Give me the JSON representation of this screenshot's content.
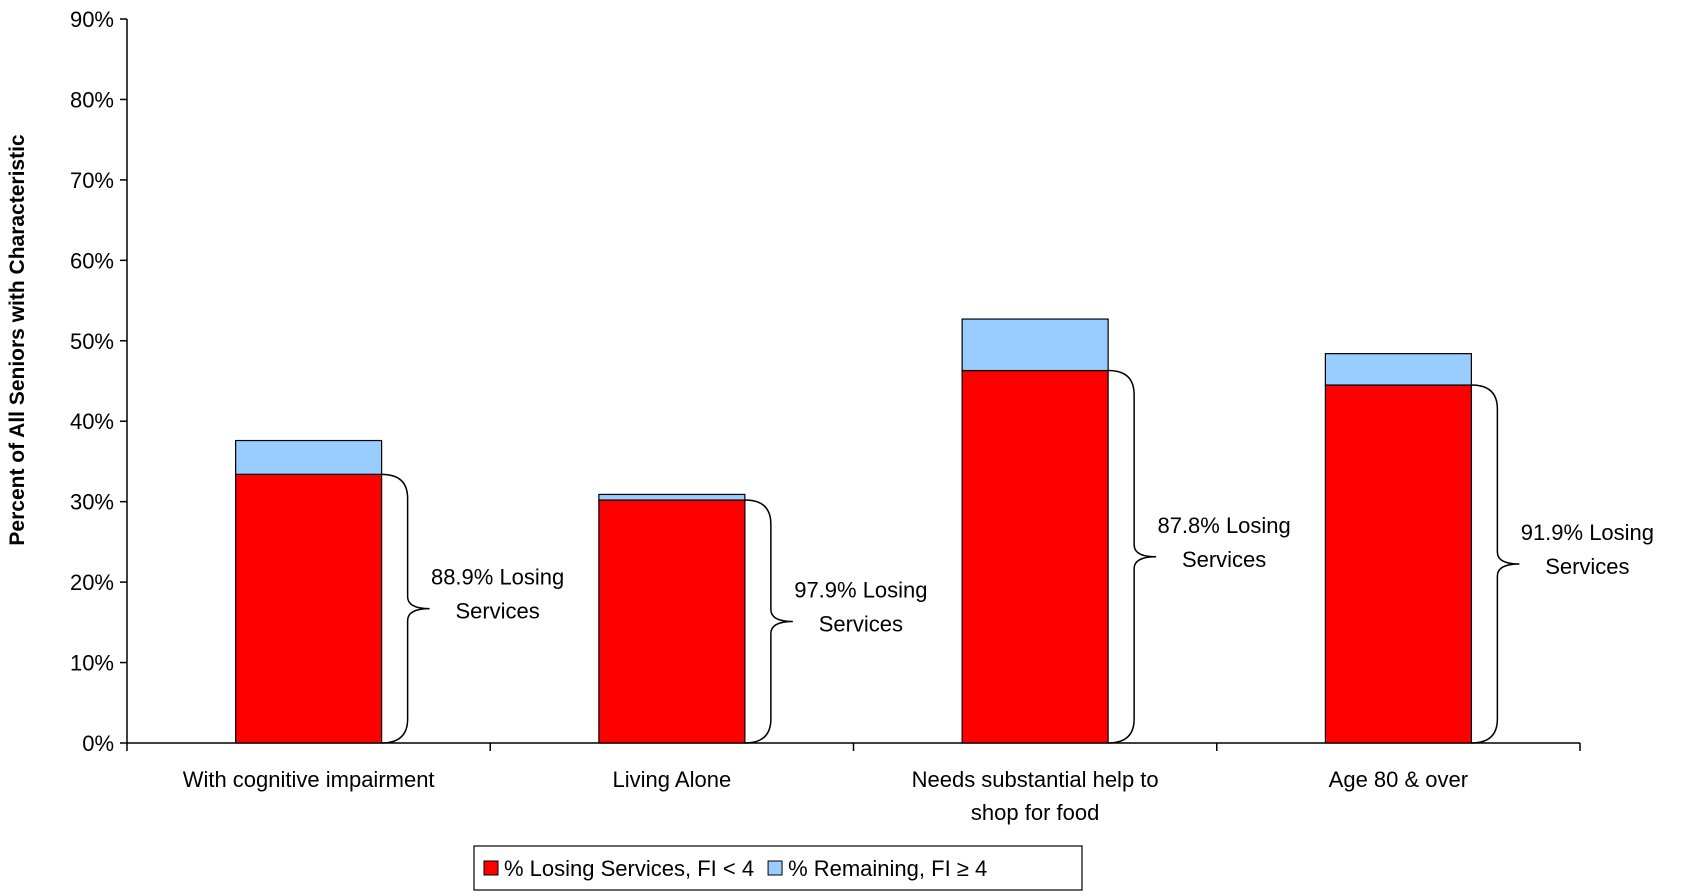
{
  "chart_data": {
    "type": "bar",
    "stacked": true,
    "ylabel": "Percent of All Seniors with Characteristic",
    "xlabel": "",
    "ylim": [
      0,
      90
    ],
    "yticks": [
      "0%",
      "10%",
      "20%",
      "30%",
      "40%",
      "50%",
      "60%",
      "70%",
      "80%",
      "90%"
    ],
    "categories": [
      [
        "With cognitive impairment"
      ],
      [
        "Living Alone"
      ],
      [
        "Needs substantial help to",
        "shop for food"
      ],
      [
        "Age 80 & over"
      ]
    ],
    "series": [
      {
        "name": "% Losing Services, FI < 4",
        "color": "#ff0000",
        "values": [
          33.4,
          30.2,
          46.3,
          44.5
        ]
      },
      {
        "name": "% Remaining, FI ≥ 4",
        "color": "#99ccff",
        "values": [
          4.2,
          0.7,
          6.4,
          3.9
        ]
      }
    ],
    "annotations": [
      [
        "88.9% Losing",
        "Services"
      ],
      [
        "97.9% Losing",
        "Services"
      ],
      [
        "87.8% Losing",
        "Services"
      ],
      [
        "91.9% Losing",
        "Services"
      ]
    ],
    "grid": false,
    "legend_position": "bottom"
  }
}
